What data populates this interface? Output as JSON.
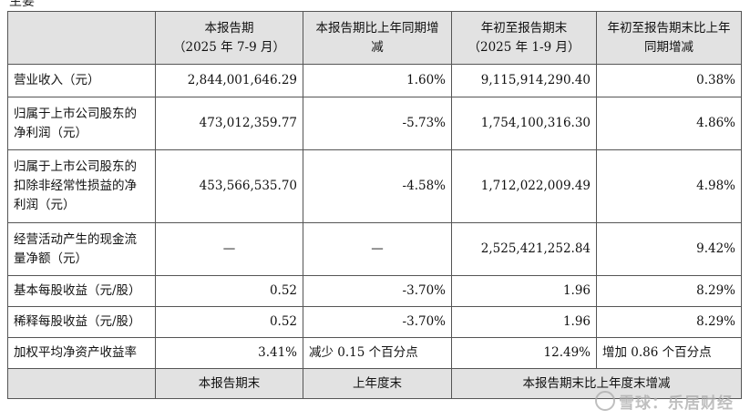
{
  "header_fragment": "主要",
  "table": {
    "headers": [
      "",
      [
        "本报告期",
        "（2025 年 7-9 月）"
      ],
      [
        "本报告期比上年同期增",
        "减"
      ],
      [
        "年初至报告期末",
        "（2025 年 1-9 月）"
      ],
      [
        "年初至报告期末比上年",
        "同期增减"
      ]
    ],
    "rows": [
      {
        "label": [
          "营业收入（元）"
        ],
        "c1": "2,844,001,646.29",
        "c2": "1.60%",
        "c3": "9,115,914,290.40",
        "c4": "0.38%"
      },
      {
        "label": [
          "归属于上市公司股东的",
          "净利润（元）"
        ],
        "c1": "473,012,359.77",
        "c2": "-5.73%",
        "c3": "1,754,100,316.30",
        "c4": "4.86%"
      },
      {
        "label": [
          "归属于上市公司股东的",
          "扣除非经常性损益的净",
          "利润（元）"
        ],
        "c1": "453,566,535.70",
        "c2": "-4.58%",
        "c3": "1,712,022,009.49",
        "c4": "4.98%"
      },
      {
        "label": [
          "经营活动产生的现金流",
          "量净额（元）"
        ],
        "c1": "—",
        "c2": "—",
        "c3": "2,525,421,252.84",
        "c4": "9.42%"
      },
      {
        "label": [
          "基本每股收益（元/股）"
        ],
        "c1": "0.52",
        "c2": "-3.70%",
        "c3": "1.96",
        "c4": "8.29%"
      },
      {
        "label": [
          "稀释每股收益（元/股）"
        ],
        "c1": "0.52",
        "c2": "-3.70%",
        "c3": "1.96",
        "c4": "8.29%"
      },
      {
        "label": [
          "加权平均净资产收益率"
        ],
        "c1": "3.41%",
        "c2": "减少 0.15 个百分点",
        "c3": "12.49%",
        "c4": "增加 0.86 个百分点"
      }
    ],
    "footer": [
      "",
      "本报告期末",
      "上年度末",
      "本报告期末比上年度末增减"
    ]
  },
  "watermark": "雪球：乐居财经"
}
